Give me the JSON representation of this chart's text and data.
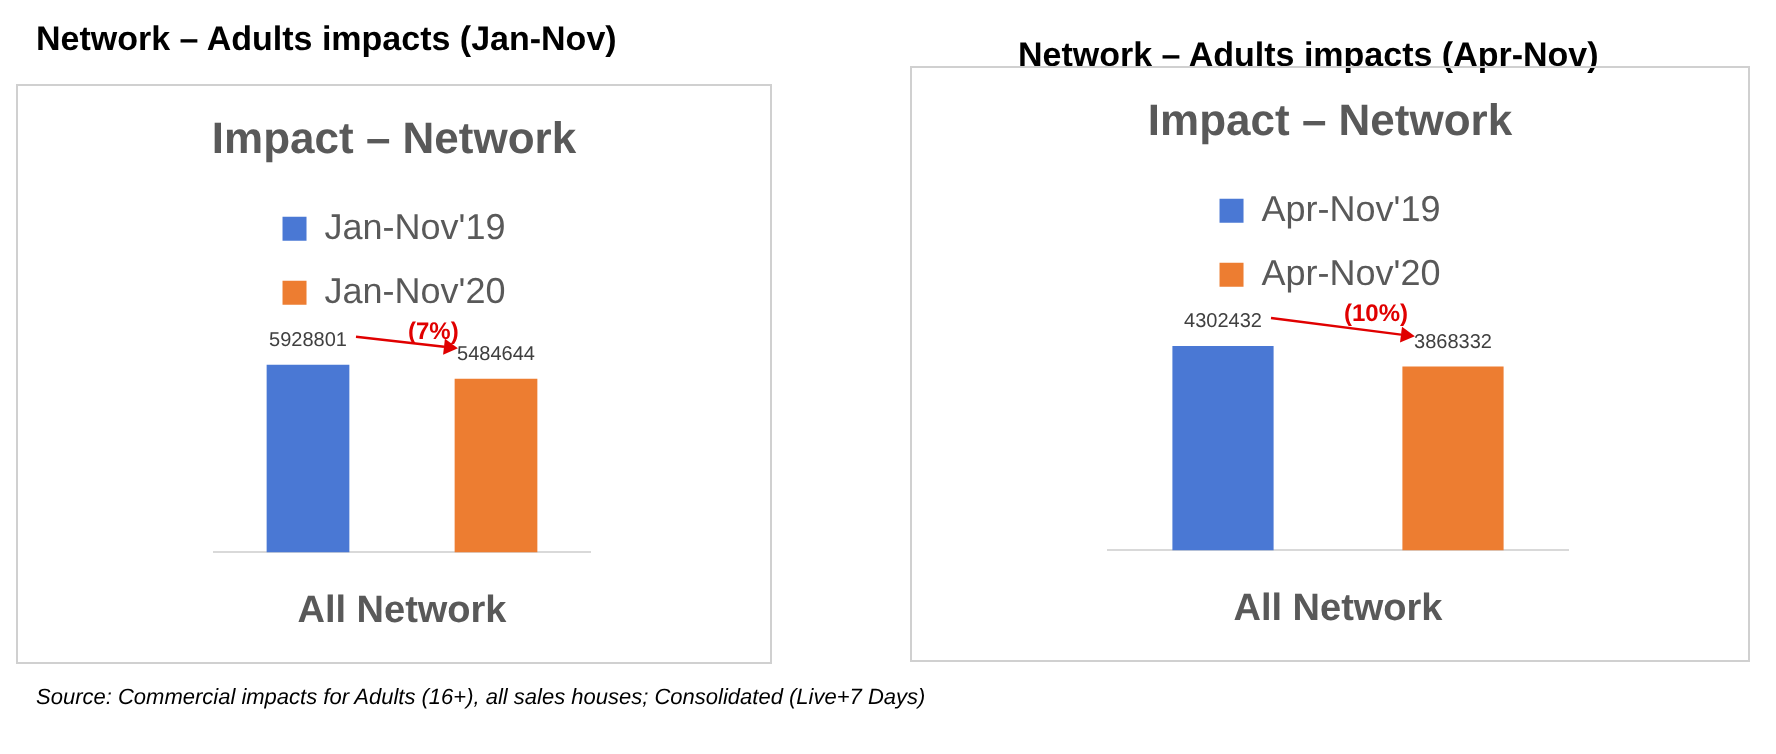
{
  "chart_data": [
    {
      "type": "bar",
      "title": "Network – Adults impacts (Jan-Nov)",
      "subtitle": "Impact – Network",
      "xlabel": "All Network",
      "categories": [
        null,
        null
      ],
      "stacked": true,
      "series": [
        {
          "name": "Jan-Nov'19",
          "color": "#4a78d4",
          "values": [
            5928801,
            null
          ]
        },
        {
          "name": "Jan-Nov'20",
          "color": "#ed7d31",
          "values": [
            null,
            5484644
          ]
        }
      ],
      "data_labels": true,
      "legend": "top",
      "grid": false,
      "annotations": [
        "(7%)",
        "Source: Commercial impacts for Adults (16+), all sales houses; Consolidated (Live+7 Days)"
      ]
    },
    {
      "type": "bar",
      "title": "Network – Adults impacts (Apr-Nov)",
      "subtitle": "Impact – Network",
      "xlabel": "All Network",
      "categories": [
        null,
        null
      ],
      "stacked": true,
      "series": [
        {
          "name": "Apr-Nov'19",
          "color": "#4a78d4",
          "values": [
            4302432,
            null
          ]
        },
        {
          "name": "Apr-Nov'20",
          "color": "#ed7d31",
          "values": [
            null,
            3868332
          ]
        }
      ],
      "data_labels": true,
      "legend": "top",
      "grid": false,
      "annotations": [
        "(10%)"
      ]
    }
  ]
}
